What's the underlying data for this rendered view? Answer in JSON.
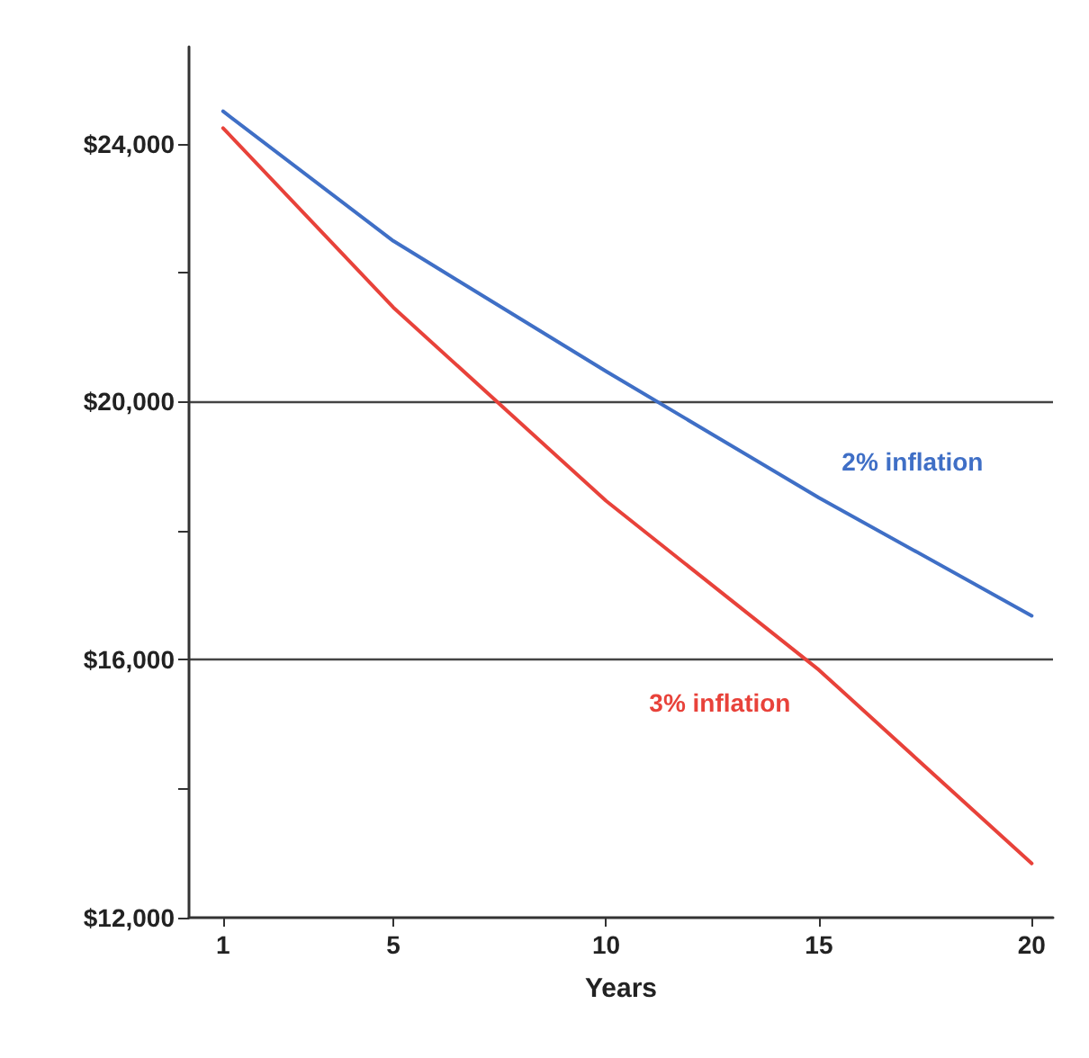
{
  "chart_data": {
    "type": "line",
    "xlabel": "Years",
    "x": [
      1,
      5,
      10,
      15,
      20
    ],
    "series": [
      {
        "name": "2% inflation",
        "color": "#3f6fc6",
        "values": [
          24500,
          22490,
          20470,
          18510,
          16680
        ]
      },
      {
        "name": "3% inflation",
        "color": "#e8423a",
        "values": [
          24240,
          21460,
          18460,
          15840,
          12840
        ]
      }
    ],
    "xlim": [
      0.2,
      20.5
    ],
    "xticks": [
      1,
      5,
      10,
      15,
      20
    ],
    "ylim": [
      12000,
      25500
    ],
    "yticks": [
      {
        "value": 12000,
        "label": "$12,000"
      },
      {
        "value": 14000,
        "label": null
      },
      {
        "value": 16000,
        "label": "$16,000"
      },
      {
        "value": 18000,
        "label": null
      },
      {
        "value": 20000,
        "label": "$20,000"
      },
      {
        "value": 22000,
        "label": null
      },
      {
        "value": 24000,
        "label": "$24,000"
      }
    ],
    "grid": "y",
    "legend": false,
    "marker": "none",
    "line_style": "solid"
  }
}
